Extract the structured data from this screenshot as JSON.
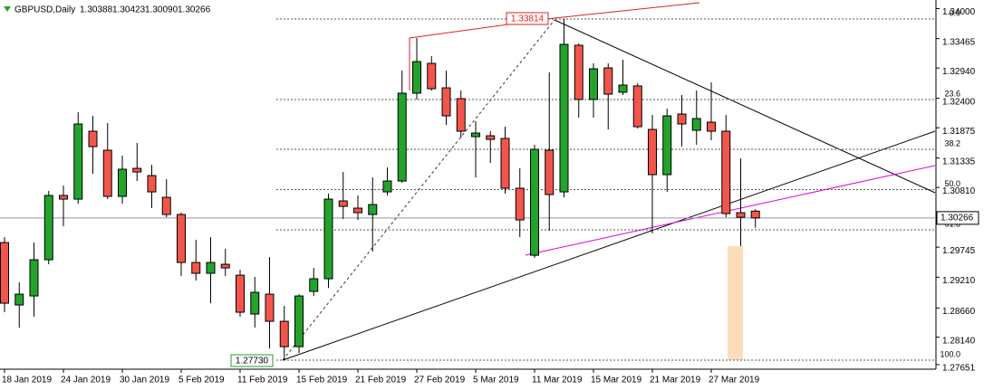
{
  "chart_data": {
    "type": "candlestick",
    "title": "GBPUSD,Daily",
    "title_values": [
      "1.30388",
      "1.30423",
      "1.30090",
      "1.30266"
    ],
    "categories": [
      "18 Jan 2019",
      null,
      null,
      null,
      "24 Jan 2019",
      null,
      null,
      null,
      "30 Jan 2019",
      null,
      null,
      null,
      "5 Feb 2019",
      null,
      null,
      null,
      "11 Feb 2019",
      null,
      null,
      null,
      "15 Feb 2019",
      null,
      null,
      null,
      "21 Feb 2019",
      null,
      null,
      null,
      "27 Feb 2019",
      null,
      null,
      null,
      "5 Mar 2019",
      null,
      null,
      null,
      "11 Mar 2019",
      null,
      null,
      null,
      "15 Mar 2019",
      null,
      null,
      null,
      "21 Mar 2019",
      null,
      null,
      null,
      "27 Mar 2019",
      null,
      null,
      null
    ],
    "open": [
      1.29827,
      1.28714,
      1.28875,
      1.29521,
      1.30667,
      1.30602,
      1.31813,
      1.31474,
      1.30651,
      1.31151,
      1.31022,
      1.30634,
      1.30328,
      1.29472,
      1.29279,
      1.2944,
      1.29246,
      1.28552,
      1.28907,
      1.28423,
      1.27971,
      1.28956,
      1.29182,
      1.3057,
      1.30441,
      1.30328,
      1.30731,
      1.30925,
      1.32491,
      1.33023,
      1.32587,
      1.32394,
      1.31716,
      1.31732,
      1.31684,
      1.30796,
      1.29601,
      1.31474,
      1.30731,
      1.33346,
      1.32378,
      1.32942,
      1.32507,
      1.3262,
      1.31845,
      1.31038,
      1.32119,
      1.31829,
      1.31974,
      1.31813,
      1.3036,
      1.30388
    ],
    "high": [
      1.29924,
      1.29117,
      1.29827,
      1.30747,
      1.30844,
      1.32152,
      1.32087,
      1.31958,
      1.31377,
      1.31603,
      1.31215,
      1.30957,
      1.3036,
      1.29876,
      1.29924,
      1.29714,
      1.29343,
      1.29214,
      1.29569,
      1.28698,
      1.28907,
      1.29375,
      1.30699,
      1.31086,
      1.30667,
      1.30989,
      1.31167,
      1.32894,
      1.33475,
      1.33152,
      1.32894,
      1.32539,
      1.3199,
      1.31813,
      1.31893,
      1.31151,
      1.31571,
      1.32862,
      1.33814,
      1.33378,
      1.33023,
      1.33023,
      1.33088,
      1.32668,
      1.32103,
      1.32216,
      1.32458,
      1.32539,
      1.32684,
      1.32103,
      1.31328,
      1.30423
    ],
    "low": [
      1.28585,
      1.2831,
      1.28504,
      1.2944,
      1.30118,
      1.30521,
      1.31054,
      1.30602,
      1.30521,
      1.30925,
      1.30441,
      1.30279,
      1.2923,
      1.2915,
      1.28746,
      1.2923,
      1.28504,
      1.2831,
      1.27939,
      1.2773,
      1.27858,
      1.28875,
      1.2902,
      1.30247,
      1.30231,
      1.29666,
      1.30667,
      1.30893,
      1.32378,
      1.32539,
      1.31926,
      1.317,
      1.30989,
      1.31248,
      1.30699,
      1.29924,
      1.29553,
      1.30037,
      1.30634,
      1.32055,
      1.32055,
      1.31845,
      1.32458,
      1.31861,
      1.29989,
      1.30731,
      1.31538,
      1.31571,
      1.31651,
      1.30279,
      1.29763,
      1.3009
    ],
    "close": [
      1.28746,
      1.28907,
      1.29521,
      1.30667,
      1.30602,
      1.31942,
      1.31538,
      1.30651,
      1.31135,
      1.31086,
      1.30731,
      1.30328,
      1.29472,
      1.29279,
      1.29472,
      1.29375,
      1.28585,
      1.2894,
      1.28423,
      1.27971,
      1.28875,
      1.29182,
      1.30602,
      1.30473,
      1.3036,
      1.30505,
      1.30925,
      1.32491,
      1.33055,
      1.32571,
      1.32087,
      1.31813,
      1.3178,
      1.31667,
      1.30796,
      1.30231,
      1.3149,
      1.30683,
      1.33362,
      1.32378,
      1.32926,
      1.32474,
      1.32636,
      1.31893,
      1.31038,
      1.32087,
      1.31942,
      1.32039,
      1.31813,
      1.30344,
      1.30279,
      1.30266
    ],
    "up_color": "#22a32c",
    "down_color": "#f2554b",
    "ylim": [
      1.27569,
      1.34153
    ],
    "yticks": [
      {
        "value": 1.34,
        "label": "1.34000"
      },
      1.33465,
      {
        "value": 1.3294,
        "label": "1.32940"
      },
      {
        "value": 1.324,
        "label": "1.32400"
      },
      1.31875,
      1.31335,
      {
        "value": 1.3081,
        "label": "1.30810"
      },
      1.29745,
      {
        "value": 1.2921,
        "label": "1.29210"
      },
      {
        "value": 1.2866,
        "label": "1.28660"
      },
      {
        "value": 1.2814,
        "label": "1.28140"
      },
      1.27651
    ],
    "current_price": 1.30266,
    "fib": {
      "high": 1.33814,
      "low": {
        "value": 1.2773,
        "label": "1.27730"
      },
      "levels": [
        {
          "value": 0,
          "label": "0.0"
        },
        23.6,
        38.2,
        {
          "value": 50,
          "label": "50.0"
        },
        61.8,
        {
          "value": 100,
          "label": "100.0"
        }
      ]
    }
  }
}
